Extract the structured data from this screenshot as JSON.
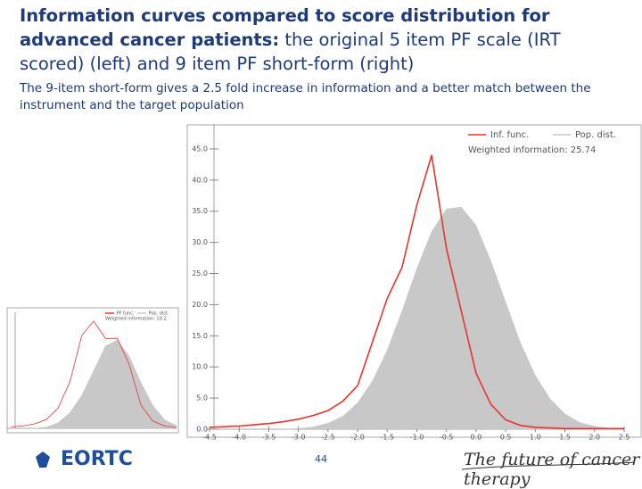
{
  "slide": {
    "title_bold": "Information curves compared to score distribution for advanced cancer patients:",
    "title_rest": " the original 5 item PF scale (IRT scored) (left) and 9 item PF short-form (right)",
    "subtitle": "The 9-item short-form gives a 2.5 fold increase in information and a better match between the instrument and the target population",
    "logo": "EORTC",
    "page_number": "44",
    "tagline": "The future of cancer therapy"
  },
  "chart_data": [
    {
      "type": "line",
      "x": [
        -4.5,
        -4,
        -3.5,
        -3,
        -2.5,
        -2,
        -1.5,
        -1,
        -0.5,
        0,
        0.5,
        1,
        1.5,
        2,
        2.5
      ],
      "series": [
        {
          "name": "PF func.",
          "color": "#e8332f",
          "style": "line",
          "values": [
            0.5,
            0.8,
            1.5,
            3,
            7,
            16,
            32,
            37,
            31,
            31,
            22,
            8,
            2.5,
            0.8,
            0.3
          ]
        },
        {
          "name": "Pop. dist.",
          "color": "#c8c8c8",
          "style": "area",
          "values": [
            0,
            0,
            0.1,
            0.5,
            2,
            5.5,
            11.5,
            20,
            28.5,
            30.5,
            25,
            16,
            8,
            3,
            1
          ]
        }
      ],
      "annotation": "Weighted information: 10.2",
      "xlim": [
        -4.5,
        2.5
      ],
      "ylim": [
        0,
        40
      ]
    },
    {
      "type": "line",
      "x": [
        -4.5,
        -4.25,
        -4,
        -3.75,
        -3.5,
        -3.25,
        -3,
        -2.75,
        -2.5,
        -2.25,
        -2,
        -1.75,
        -1.5,
        -1.25,
        -1,
        -0.75,
        -0.5,
        -0.25,
        0,
        0.25,
        0.5,
        0.75,
        1,
        1.25,
        1.5,
        1.75,
        2,
        2.25,
        2.5
      ],
      "series": [
        {
          "name": "Inf. func.",
          "color": "#e8332f",
          "style": "line",
          "values": [
            0.3,
            0.4,
            0.5,
            0.7,
            0.9,
            1.2,
            1.6,
            2.2,
            3,
            4.5,
            7,
            14,
            21,
            26,
            36,
            44,
            29,
            19,
            9,
            4,
            1.5,
            0.6,
            0.3,
            0.2,
            0.1,
            0.1,
            0.1,
            0.1,
            0.1
          ]
        },
        {
          "name": "Pop. dist.",
          "color": "#c8c8c8",
          "style": "area",
          "values": [
            0,
            0,
            0,
            0,
            0,
            0.05,
            0.15,
            0.4,
            1,
            2.1,
            4.3,
            7.8,
            12.8,
            19.1,
            25.9,
            31.8,
            35.4,
            35.7,
            32.8,
            27.1,
            20.5,
            13.9,
            8.7,
            4.9,
            2.5,
            1.1,
            0.5,
            0.2,
            0.1
          ]
        }
      ],
      "annotation": "Weighted information: 25.74",
      "xlim": [
        -4.5,
        2.5
      ],
      "ylim": [
        0,
        49
      ],
      "xticks": [
        -4.5,
        {
          "value": -4,
          "label": "-4.0"
        },
        -3.5,
        {
          "value": -3,
          "label": "-3.0"
        },
        -2.5,
        {
          "value": -2,
          "label": "-2.0"
        },
        -1.5,
        {
          "value": -1,
          "label": "-1.0"
        },
        -0.5,
        {
          "value": 0,
          "label": "0.0"
        },
        0.5,
        {
          "value": 1,
          "label": "1.0"
        },
        1.5,
        {
          "value": 2,
          "label": "2.0"
        },
        2.5
      ],
      "yticks": [
        {
          "value": 0,
          "label": "0.0"
        },
        {
          "value": 5,
          "label": "5.0"
        },
        {
          "value": 10,
          "label": "10.0"
        },
        {
          "value": 15,
          "label": "15.0"
        },
        {
          "value": 20,
          "label": "20.0"
        },
        {
          "value": 25,
          "label": "25.0"
        },
        {
          "value": 30,
          "label": "30.0"
        },
        {
          "value": 35,
          "label": "35.0"
        },
        {
          "value": 40,
          "label": "40.0"
        },
        {
          "value": 45,
          "label": "45.0"
        }
      ]
    }
  ]
}
